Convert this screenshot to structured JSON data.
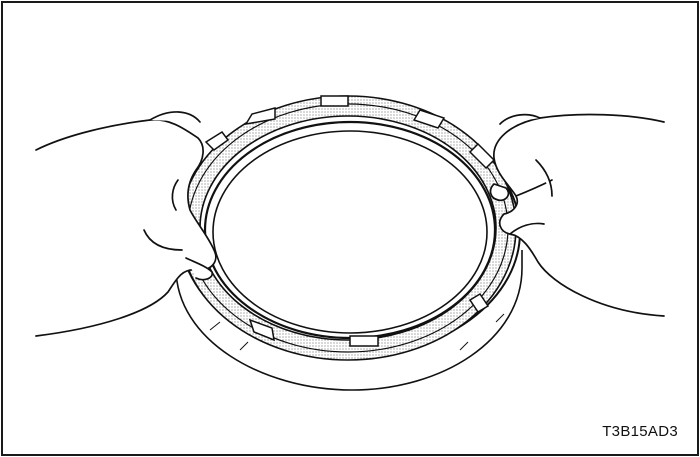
{
  "figure": {
    "code": "T3B15AD3",
    "line_color": "#111111",
    "background_color": "#ffffff",
    "stipple_color": "#444444"
  }
}
